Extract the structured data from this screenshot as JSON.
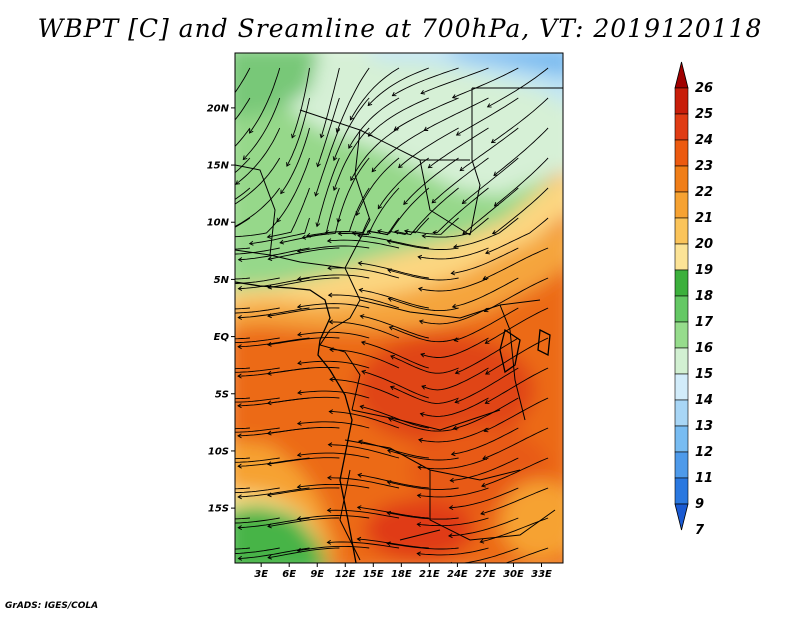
{
  "title": "WBPT [C] and Sreamline at 700hPa, VT: 2019120118",
  "credit": "GrADS: IGES/COLA",
  "map": {
    "lat_labels": [
      "20N",
      "15N",
      "10N",
      "5N",
      "EQ",
      "5S",
      "10S",
      "15S"
    ],
    "lat_values": [
      20,
      15,
      10,
      5,
      0,
      -5,
      -10,
      -15
    ],
    "lon_labels": [
      "3E",
      "6E",
      "9E",
      "12E",
      "15E",
      "18E",
      "21E",
      "24E",
      "27E",
      "30E",
      "33E"
    ],
    "lon_values": [
      3,
      6,
      9,
      12,
      15,
      18,
      21,
      24,
      27,
      30,
      33
    ],
    "lat_range": [
      -19.8,
      24.8
    ],
    "lon_range": [
      0.2,
      35.3
    ]
  },
  "colorbar": {
    "labels": [
      "26",
      "25",
      "24",
      "23",
      "22",
      "21",
      "20",
      "19",
      "18",
      "17",
      "16",
      "15",
      "14",
      "13",
      "12",
      "11",
      "9",
      "7"
    ],
    "colors": [
      "#a00000",
      "#c81e0a",
      "#e03c14",
      "#ec5a10",
      "#f07e18",
      "#f6a232",
      "#fbc45a",
      "#fce396",
      "#3cb03c",
      "#64c864",
      "#96dc8c",
      "#d2f0d2",
      "#d2ecfa",
      "#a8d6f6",
      "#78bcf2",
      "#4e9aea",
      "#2a78e0",
      "#1a5ad2"
    ]
  }
}
